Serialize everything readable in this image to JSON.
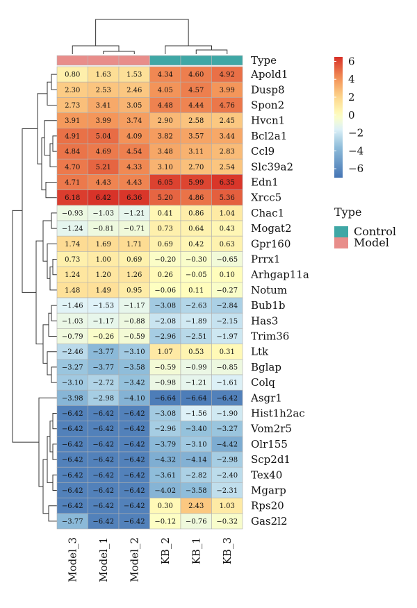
{
  "chart_data": {
    "type": "heatmap",
    "title": "",
    "columns": [
      "Model_3",
      "Model_1",
      "Model_2",
      "KB_2",
      "KB_1",
      "KB_3"
    ],
    "column_type": [
      "Model",
      "Model",
      "Model",
      "Control",
      "Control",
      "Control"
    ],
    "type_annotation_label": "Type",
    "rows": [
      "Apold1",
      "Dusp8",
      "Spon2",
      "Hvcn1",
      "Bcl2a1",
      "Ccl9",
      "Slc39a2",
      "Edn1",
      "Xrcc5",
      "Chac1",
      "Mogat2",
      "Gpr160",
      "Prrx1",
      "Arhgap11a",
      "Notum",
      "Bub1b",
      "Has3",
      "Trim36",
      "Ltk",
      "Bglap",
      "Colq",
      "Asgr1",
      "Hist1h2ac",
      "Vom2r5",
      "Olr155",
      "Scp2d1",
      "Tex40",
      "Mgarp",
      "Rps20",
      "Gas2l2"
    ],
    "values": [
      [
        0.8,
        1.63,
        1.53,
        4.34,
        4.6,
        4.92
      ],
      [
        2.3,
        2.53,
        2.46,
        4.05,
        4.57,
        3.99
      ],
      [
        2.73,
        3.41,
        3.05,
        4.48,
        4.44,
        4.76
      ],
      [
        3.91,
        3.99,
        3.74,
        2.9,
        2.58,
        2.45
      ],
      [
        4.91,
        5.04,
        4.09,
        3.82,
        3.57,
        3.44
      ],
      [
        4.84,
        4.69,
        4.54,
        3.48,
        3.11,
        2.83
      ],
      [
        4.7,
        5.21,
        4.33,
        3.1,
        2.7,
        2.54
      ],
      [
        4.71,
        4.43,
        4.43,
        6.05,
        5.99,
        6.35
      ],
      [
        6.18,
        6.42,
        6.36,
        5.2,
        4.86,
        5.36
      ],
      [
        -0.93,
        -1.03,
        -1.21,
        0.41,
        0.86,
        1.04
      ],
      [
        -1.24,
        -0.81,
        -0.71,
        0.73,
        0.64,
        0.43
      ],
      [
        1.74,
        1.69,
        1.71,
        0.69,
        0.42,
        0.63
      ],
      [
        0.73,
        1.0,
        0.69,
        -0.2,
        -0.3,
        -0.65
      ],
      [
        1.24,
        1.2,
        1.26,
        0.26,
        -0.05,
        0.1
      ],
      [
        1.48,
        1.49,
        0.95,
        -0.06,
        0.11,
        -0.27
      ],
      [
        -1.46,
        -1.53,
        -1.17,
        -3.08,
        -2.63,
        -2.84
      ],
      [
        -1.03,
        -1.17,
        -0.88,
        -2.08,
        -1.89,
        -2.15
      ],
      [
        -0.79,
        -0.26,
        -0.59,
        -2.96,
        -2.51,
        -1.97
      ],
      [
        -2.46,
        -3.77,
        -3.1,
        1.07,
        0.53,
        0.31
      ],
      [
        -3.27,
        -3.77,
        -3.58,
        -0.59,
        -0.99,
        -0.85
      ],
      [
        -3.1,
        -2.72,
        -3.42,
        -0.98,
        -1.21,
        -1.61
      ],
      [
        -3.98,
        -2.98,
        -4.1,
        -6.64,
        -6.64,
        -6.42
      ],
      [
        -6.42,
        -6.42,
        -6.42,
        -3.08,
        -1.56,
        -1.9
      ],
      [
        -6.42,
        -6.42,
        -6.42,
        -2.96,
        -3.4,
        -3.27
      ],
      [
        -6.42,
        -6.42,
        -6.42,
        -3.79,
        -3.1,
        -4.42
      ],
      [
        -6.42,
        -6.42,
        -6.42,
        -4.32,
        -4.14,
        -2.98
      ],
      [
        -6.42,
        -6.42,
        -6.42,
        -3.61,
        -2.82,
        -2.4
      ],
      [
        -6.42,
        -6.42,
        -6.42,
        -4.02,
        -3.58,
        -2.31
      ],
      [
        -6.42,
        -6.42,
        -6.42,
        0.3,
        2.43,
        1.03
      ],
      [
        -3.77,
        -6.42,
        -6.42,
        -0.12,
        -0.76,
        -0.32
      ]
    ],
    "color_scale": {
      "range": [
        -7,
        6.5
      ],
      "ticks": [
        6,
        4,
        2,
        0,
        -2,
        -4,
        -6
      ],
      "colors": {
        "low": "#4575b4",
        "mid": "#ffffbf",
        "high": "#d73027"
      }
    },
    "legend": {
      "title": "Type",
      "entries": [
        {
          "label": "Control",
          "color": "#3fa7a5"
        },
        {
          "label": "Model",
          "color": "#e88d8a"
        }
      ]
    }
  }
}
